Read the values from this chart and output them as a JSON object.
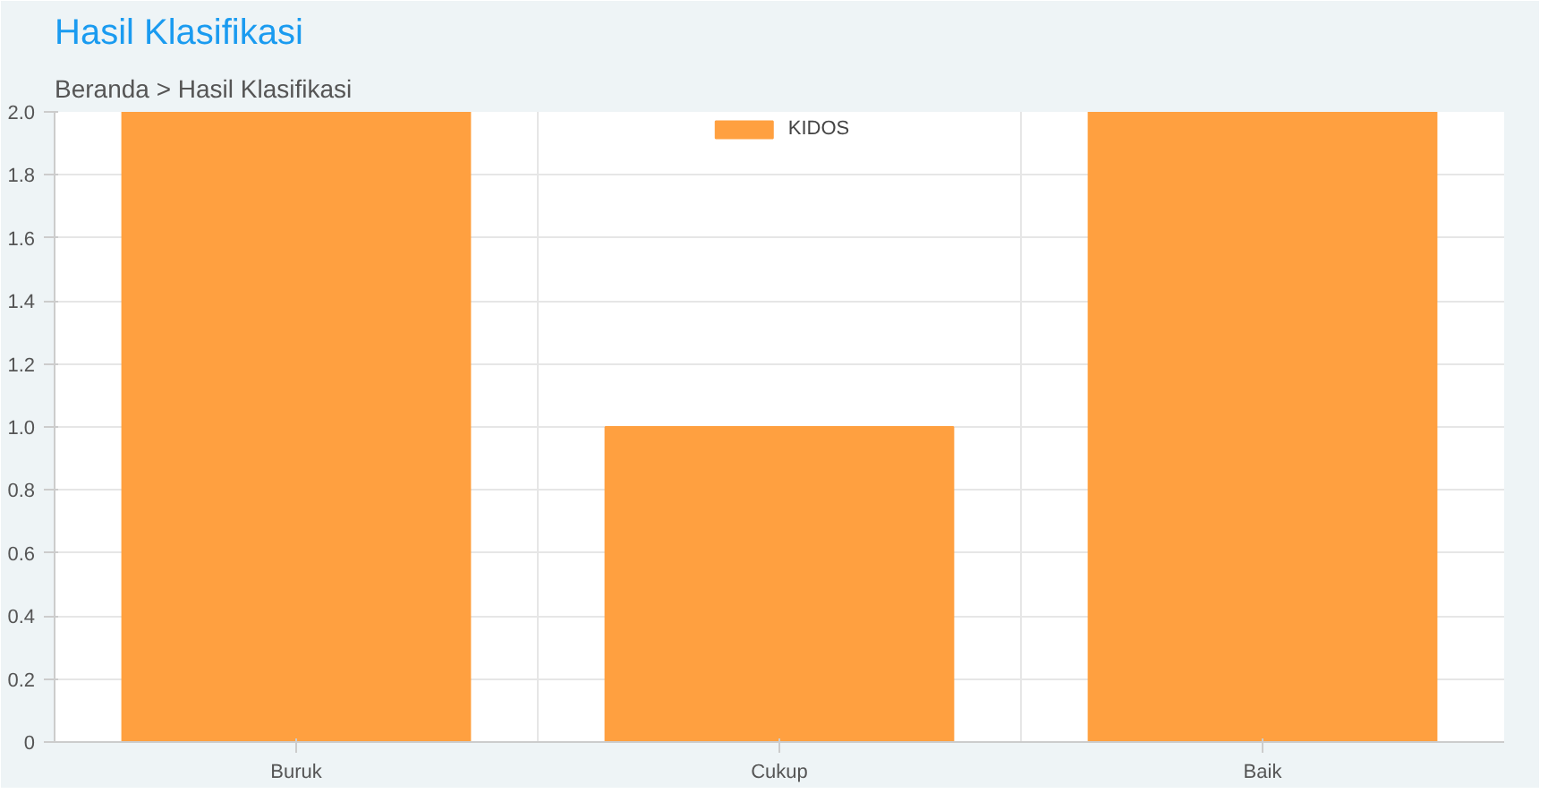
{
  "chart_data": {
    "type": "bar",
    "title": "Hasil Klasifikasi",
    "subtitle": "Beranda > Hasil Klasifikasi",
    "categories": [
      "Buruk",
      "Cukup",
      "Baik"
    ],
    "series": [
      {
        "name": "KIDOS",
        "color": "#ffa040",
        "values": [
          2,
          1,
          2
        ]
      }
    ],
    "ylim": [
      0,
      2
    ],
    "yticks": [
      0,
      0.2,
      0.4,
      0.6,
      0.8,
      {
        "value": 1,
        "label": "1.0"
      },
      1.2,
      1.4,
      1.6,
      1.8,
      {
        "value": 2,
        "label": "2.0"
      }
    ],
    "grid": true,
    "legend": "top"
  }
}
